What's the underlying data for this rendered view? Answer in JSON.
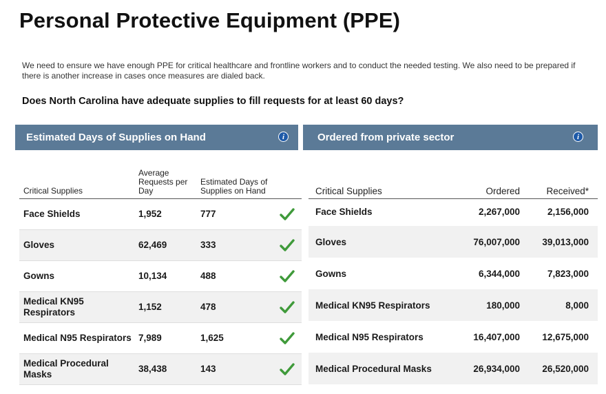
{
  "page": {
    "title": "Personal Protective Equipment (PPE)",
    "intro": "We need to ensure we have enough PPE for critical healthcare and frontline workers and to conduct the needed testing. We also need to be prepared if there is another increase in cases once measures are dialed back.",
    "question": "Does North Carolina have adequate supplies to fill requests for at least 60 days?"
  },
  "left_panel": {
    "header": "Estimated Days of Supplies on Hand",
    "info_icon": "info-icon",
    "columns": {
      "supply": "Critical Supplies",
      "requests": "Average Requests per Day",
      "days": "Estimated Days of Supplies on Hand"
    },
    "rows": [
      {
        "supply": "Face Shields",
        "requests": "1,952",
        "days": "777",
        "status": "check-icon"
      },
      {
        "supply": "Gloves",
        "requests": "62,469",
        "days": "333",
        "status": "check-icon"
      },
      {
        "supply": "Gowns",
        "requests": "10,134",
        "days": "488",
        "status": "check-icon"
      },
      {
        "supply": "Medical KN95 Respirators",
        "requests": "1,152",
        "days": "478",
        "status": "check-icon"
      },
      {
        "supply": "Medical N95 Respirators",
        "requests": "7,989",
        "days": "1,625",
        "status": "check-icon"
      },
      {
        "supply": "Medical Procedural Masks",
        "requests": "38,438",
        "days": "143",
        "status": "check-icon"
      }
    ]
  },
  "right_panel": {
    "header": "Ordered from private sector",
    "info_icon": "info-icon",
    "columns": {
      "supply": "Critical Supplies",
      "ordered": "Ordered",
      "received": "Received*"
    },
    "rows": [
      {
        "supply": "Face Shields",
        "ordered": "2,267,000",
        "received": "2,156,000"
      },
      {
        "supply": "Gloves",
        "ordered": "76,007,000",
        "received": "39,013,000"
      },
      {
        "supply": "Gowns",
        "ordered": "6,344,000",
        "received": "7,823,000"
      },
      {
        "supply": "Medical KN95 Respirators",
        "ordered": "180,000",
        "received": "8,000"
      },
      {
        "supply": "Medical N95 Respirators",
        "ordered": "16,407,000",
        "received": "12,675,000"
      },
      {
        "supply": "Medical Procedural Masks",
        "ordered": "26,934,000",
        "received": "26,520,000"
      }
    ]
  },
  "colors": {
    "header_bg": "#5b7a97",
    "info_icon": "#1e5aa8",
    "check": "#3f9a3a",
    "stripe": "#f1f1f1"
  }
}
